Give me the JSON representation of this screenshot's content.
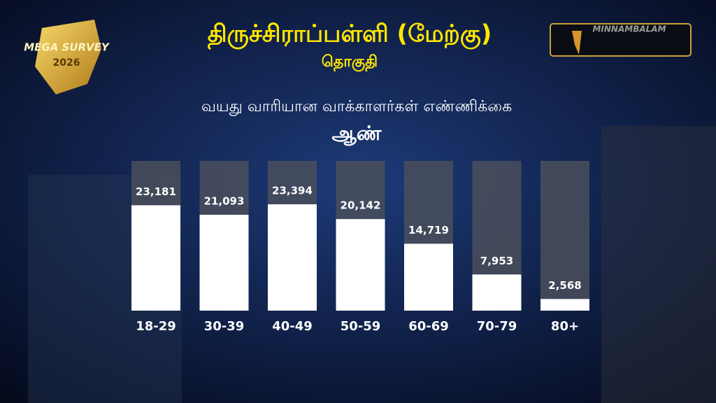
{
  "chart_data": {
    "type": "bar",
    "title": "திருச்சிராப்பள்ளி (மேற்கு)",
    "subtitle": "தொகுதி",
    "chart_title": "வயது வாரியான வாக்காளர்கள் எண்ணிக்கை",
    "series_label": "ஆண்",
    "categories": [
      "18-29",
      "30-39",
      "40-49",
      "50-59",
      "60-69",
      "70-79",
      "80+"
    ],
    "values": [
      23181,
      21093,
      23394,
      20142,
      14719,
      7953,
      2568
    ],
    "value_labels": [
      "23,181",
      "21,093",
      "23,394",
      "20,142",
      "14,719",
      "7,953",
      "2,568"
    ],
    "color": "#ffffff"
  },
  "logo": {
    "line1": "MEGA SURVEY",
    "line2": "2026"
  },
  "brand": "MINNAMBALAM"
}
